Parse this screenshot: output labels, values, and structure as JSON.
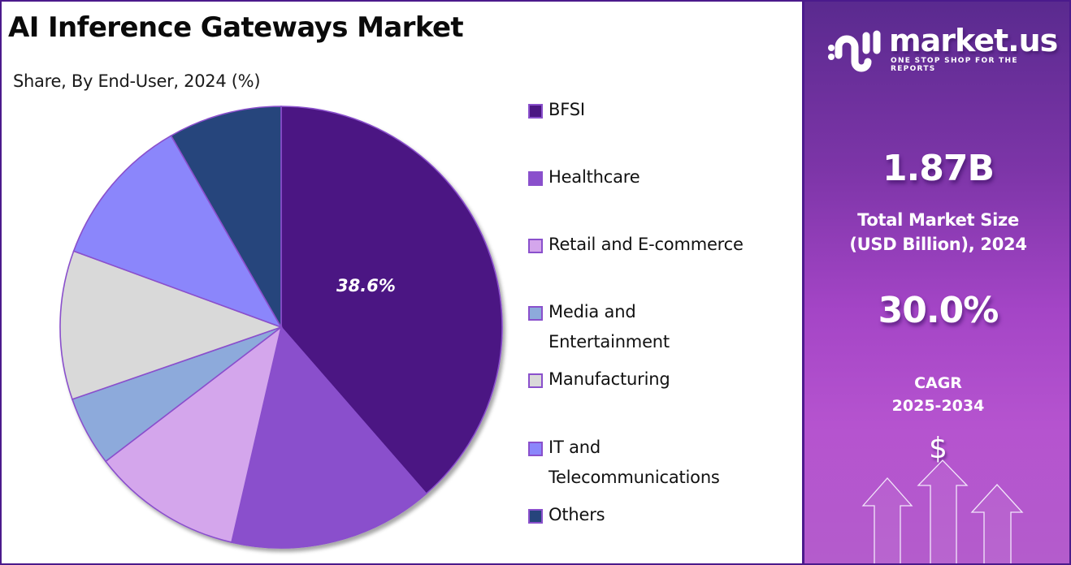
{
  "header": {
    "title": "AI Inference Gateways Market",
    "subtitle": "Share, By End-User, 2024 (%)"
  },
  "pie": {
    "highlight_label": "38.6%"
  },
  "legend": [
    {
      "label": "BFSI",
      "color": "#4b1683"
    },
    {
      "label": "Healthcare",
      "color": "#8a4fcc"
    },
    {
      "label": "Retail and E-commerce",
      "color": "#d4a6ec"
    },
    {
      "label": "Media and Entertainment",
      "color": "#8daadb"
    },
    {
      "label": "Manufacturing",
      "color": "#d9d9d9"
    },
    {
      "label": "IT and Telecommunications",
      "color": "#8b86fb"
    },
    {
      "label": "Others",
      "color": "#26447c"
    }
  ],
  "panel": {
    "brand_name": "market.us",
    "brand_tagline": "ONE STOP SHOP FOR THE REPORTS",
    "market_size_value": "1.87B",
    "market_size_caption_line1": "Total Market Size",
    "market_size_caption_line2": "(USD Billion), 2024",
    "cagr_value": "30.0%",
    "cagr_caption_line1": "CAGR",
    "cagr_caption_line2": "2025-2034",
    "currency_symbol": "$",
    "icons": [
      "market-us-logo-icon",
      "dollar-icon",
      "growth-arrows-icon"
    ]
  },
  "colors": {
    "border": "#4b1a8c",
    "panel_top": "#5a2a8f",
    "panel_bottom": "#b553cf",
    "slice_stroke": "#8a50cc"
  },
  "chart_data": {
    "type": "pie",
    "title": "AI Inference Gateways Market",
    "subtitle": "Share, By End-User, 2024 (%)",
    "categories": [
      "BFSI",
      "Healthcare",
      "Retail and E-commerce",
      "Media and Entertainment",
      "Manufacturing",
      "IT and Telecommunications",
      "Others"
    ],
    "values": [
      38.6,
      15.0,
      11.0,
      5.1,
      10.9,
      11.1,
      8.3
    ],
    "colors": [
      "#4b1683",
      "#8a4fcc",
      "#d4a6ec",
      "#8daadb",
      "#d9d9d9",
      "#8b86fb",
      "#26447c"
    ],
    "labeled_values": {
      "BFSI": 38.6
    },
    "start_angle": "12 o'clock, clockwise",
    "legend_position": "right",
    "market_size_2024_usd_billion": 1.87,
    "cagr_2025_2034_percent": 30.0
  }
}
